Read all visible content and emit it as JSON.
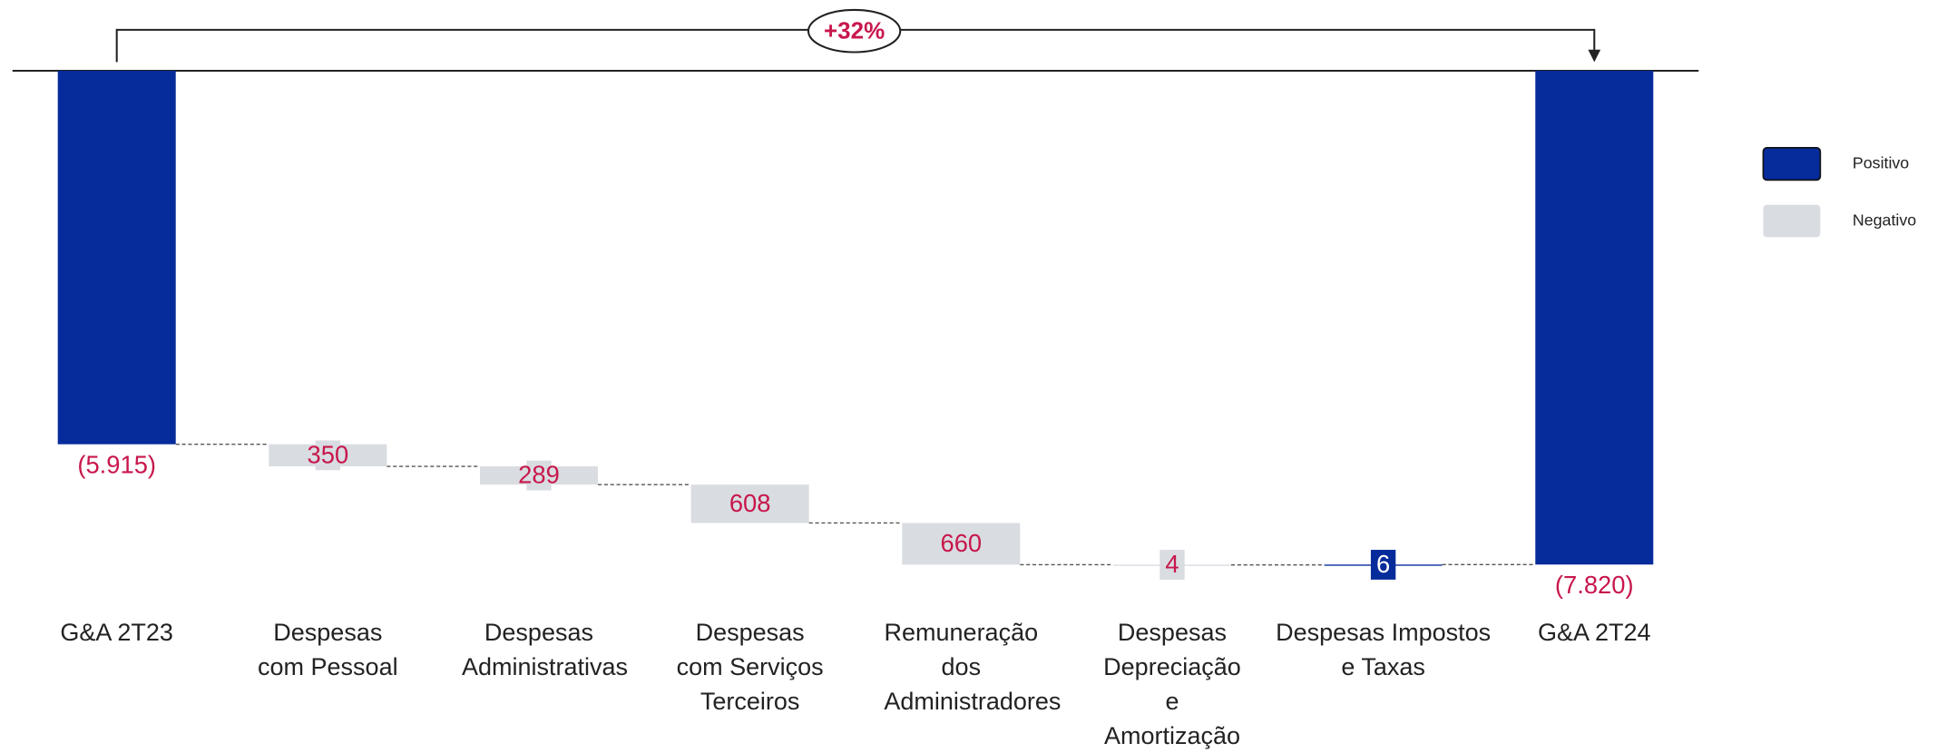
{
  "chart_data": {
    "type": "waterfall",
    "annotation": "+32%",
    "categories": [
      "G&A 2T23",
      "Despesas com Pessoal",
      "Despesas Administrativas",
      "Despesas com Serviços Terceiros",
      "Remuneração dos Administradores",
      "Despesas Depreciação e Amortização",
      "Despesas Impostos e Taxas",
      "G&A 2T24"
    ],
    "values": [
      -5915,
      -350,
      -289,
      -608,
      -660,
      -4,
      6,
      -7820
    ],
    "value_labels": [
      "(5.915)",
      "350",
      "289",
      "608",
      "660",
      "4",
      "6",
      "(7.820)"
    ],
    "total_indices": [
      0,
      7
    ],
    "series": [
      {
        "name": "Positivo",
        "color": "#062b9b"
      },
      {
        "name": "Negativo",
        "color": "#d9dce1"
      }
    ],
    "label_color": "#c8174c"
  }
}
